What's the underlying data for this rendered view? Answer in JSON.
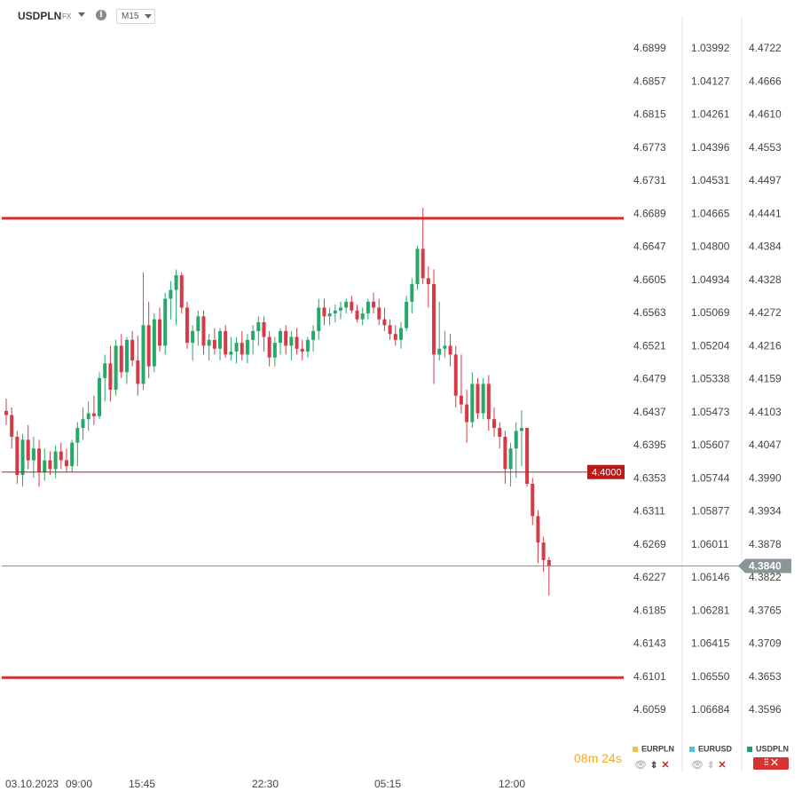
{
  "header": {
    "symbol": "USDPLN",
    "market": "FX",
    "info_glyph": "i",
    "timeframe": "M15"
  },
  "axes": {
    "col1": [
      "4.6899",
      "4.6857",
      "4.6815",
      "4.6773",
      "4.6731",
      "4.6689",
      "4.6647",
      "4.6605",
      "4.6563",
      "4.6521",
      "4.6479",
      "4.6437",
      "4.6395",
      "4.6353",
      "4.6311",
      "4.6269",
      "4.6227",
      "4.6185",
      "4.6143",
      "4.6101",
      "4.6059"
    ],
    "col2": [
      "1.03992",
      "1.04127",
      "1.04261",
      "1.04396",
      "1.04531",
      "1.04665",
      "1.04800",
      "1.04934",
      "1.05069",
      "1.05204",
      "1.05338",
      "1.05473",
      "1.05607",
      "1.05744",
      "1.05877",
      "1.06011",
      "1.06146",
      "1.06281",
      "1.06415",
      "1.06550",
      "1.06684"
    ],
    "col3": [
      "4.4722",
      "4.4666",
      "4.4610",
      "4.4553",
      "4.4497",
      "4.4441",
      "4.4384",
      "4.4328",
      "4.4272",
      "4.4216",
      "4.4159",
      "4.4103",
      "4.4047",
      "4.3990",
      "4.3934",
      "4.3878",
      "4.3822",
      "4.3765",
      "4.3709",
      "4.3653",
      "4.3596"
    ],
    "time_labels": [
      "03.10.2023",
      "09:00",
      "15:45",
      "22:30",
      "05:15",
      "12:00"
    ]
  },
  "price_lines": {
    "level_label": "4.4000",
    "current_label": "4.3840"
  },
  "countdown": {
    "min": "08",
    "min_unit": "m",
    "sec": "24",
    "sec_unit": "s"
  },
  "legend": [
    {
      "name": "EURPLN",
      "color": "#f5c242"
    },
    {
      "name": "EURUSD",
      "color": "#4ec3e0"
    },
    {
      "name": "USDPLN",
      "color": "#1fa06a"
    }
  ],
  "colors": {
    "up": "#26a86a",
    "down": "#d63a46",
    "hline": "#d32f2f",
    "current": "#8a9599"
  },
  "chart_data": {
    "type": "candlestick",
    "symbol": "USDPLN",
    "ylim": [
      4.3596,
      4.4722
    ],
    "current_price": 4.384,
    "horizontal_levels": [
      4.4432,
      4.4,
      4.365
    ],
    "x_ticks": [
      "03.10.2023",
      "09:00",
      "15:45",
      "22:30",
      "05:15",
      "12:00"
    ],
    "candles": [
      [
        4.4104,
        4.4125,
        4.408,
        4.4097
      ],
      [
        4.4097,
        4.411,
        4.404,
        4.406
      ],
      [
        4.406,
        4.407,
        4.398,
        4.3995
      ],
      [
        4.3995,
        4.4065,
        4.3975,
        4.4055
      ],
      [
        4.4055,
        4.408,
        4.4005,
        4.402
      ],
      [
        4.402,
        4.406,
        4.399,
        4.404
      ],
      [
        4.404,
        4.4055,
        4.3975,
        4.4
      ],
      [
        4.4,
        4.404,
        4.3985,
        4.402
      ],
      [
        4.402,
        4.4035,
        4.3995,
        4.4005
      ],
      [
        4.4005,
        4.4045,
        4.399,
        4.4035
      ],
      [
        4.4035,
        4.405,
        4.4005,
        4.402
      ],
      [
        4.402,
        4.404,
        4.4,
        4.401
      ],
      [
        4.401,
        4.4055,
        4.4,
        4.405
      ],
      [
        4.405,
        4.4085,
        4.401,
        4.4075
      ],
      [
        4.4075,
        4.411,
        4.4055,
        4.409
      ],
      [
        4.409,
        4.412,
        4.407,
        4.41
      ],
      [
        4.41,
        4.413,
        4.408,
        4.4095
      ],
      [
        4.4095,
        4.417,
        4.409,
        4.416
      ],
      [
        4.416,
        4.42,
        4.412,
        4.4185
      ],
      [
        4.4185,
        4.4215,
        4.412,
        4.414
      ],
      [
        4.414,
        4.4225,
        4.413,
        4.4215
      ],
      [
        4.4215,
        4.4235,
        4.416,
        4.417
      ],
      [
        4.417,
        4.423,
        4.415,
        4.4225
      ],
      [
        4.4225,
        4.424,
        4.418,
        4.419
      ],
      [
        4.419,
        4.4232,
        4.413,
        4.415
      ],
      [
        4.415,
        4.434,
        4.414,
        4.425
      ],
      [
        4.425,
        4.429,
        4.416,
        4.418
      ],
      [
        4.418,
        4.427,
        4.417,
        4.426
      ],
      [
        4.426,
        4.428,
        4.4205,
        4.4215
      ],
      [
        4.4215,
        4.4305,
        4.42,
        4.4295
      ],
      [
        4.4295,
        4.4325,
        4.426,
        4.431
      ],
      [
        4.431,
        4.4345,
        4.425,
        4.4335
      ],
      [
        4.4335,
        4.434,
        4.427,
        4.428
      ],
      [
        4.428,
        4.429,
        4.421,
        4.422
      ],
      [
        4.422,
        4.425,
        4.419,
        4.424
      ],
      [
        4.424,
        4.4275,
        4.4215,
        4.4265
      ],
      [
        4.4265,
        4.4275,
        4.42,
        4.4215
      ],
      [
        4.4215,
        4.4235,
        4.419,
        4.4225
      ],
      [
        4.4225,
        4.4245,
        4.42,
        4.421
      ],
      [
        4.421,
        4.4245,
        4.419,
        4.424
      ],
      [
        4.424,
        4.425,
        4.4195,
        4.42
      ],
      [
        4.42,
        4.423,
        4.419,
        4.4205
      ],
      [
        4.4205,
        4.423,
        4.4185,
        4.422
      ],
      [
        4.422,
        4.424,
        4.419,
        4.42
      ],
      [
        4.42,
        4.4235,
        4.4185,
        4.4225
      ],
      [
        4.4225,
        4.425,
        4.42,
        4.424
      ],
      [
        4.424,
        4.4265,
        4.4215,
        4.4255
      ],
      [
        4.4255,
        4.4265,
        4.4205,
        4.423
      ],
      [
        4.423,
        4.424,
        4.418,
        4.4195
      ],
      [
        4.4195,
        4.423,
        4.418,
        4.422
      ],
      [
        4.422,
        4.4245,
        4.42,
        4.424
      ],
      [
        4.424,
        4.425,
        4.42,
        4.4215
      ],
      [
        4.4215,
        4.424,
        4.419,
        4.423
      ],
      [
        4.423,
        4.4245,
        4.42,
        4.421
      ],
      [
        4.421,
        4.4225,
        4.419,
        4.4205
      ],
      [
        4.4205,
        4.423,
        4.4195,
        4.4225
      ],
      [
        4.4225,
        4.425,
        4.4205,
        4.424
      ],
      [
        4.424,
        4.4295,
        4.4225,
        4.428
      ],
      [
        4.428,
        4.4295,
        4.425,
        4.4265
      ],
      [
        4.4265,
        4.428,
        4.425,
        4.427
      ],
      [
        4.427,
        4.4285,
        4.4255,
        4.4275
      ],
      [
        4.4275,
        4.429,
        4.426,
        4.428
      ],
      [
        4.428,
        4.4295,
        4.427,
        4.429
      ],
      [
        4.429,
        4.43,
        4.427,
        4.4275
      ],
      [
        4.4275,
        4.4285,
        4.4255,
        4.426
      ],
      [
        4.426,
        4.428,
        4.425,
        4.427
      ],
      [
        4.427,
        4.4295,
        4.426,
        4.429
      ],
      [
        4.429,
        4.4305,
        4.427,
        4.428
      ],
      [
        4.428,
        4.4295,
        4.425,
        4.426
      ],
      [
        4.426,
        4.428,
        4.424,
        4.425
      ],
      [
        4.425,
        4.426,
        4.4225,
        4.4235
      ],
      [
        4.4235,
        4.425,
        4.4215,
        4.4225
      ],
      [
        4.4225,
        4.4255,
        4.421,
        4.4245
      ],
      [
        4.4245,
        4.43,
        4.424,
        4.429
      ],
      [
        4.429,
        4.433,
        4.427,
        4.432
      ],
      [
        4.432,
        4.4385,
        4.431,
        4.438
      ],
      [
        4.438,
        4.445,
        4.432,
        4.433
      ],
      [
        4.433,
        4.435,
        4.428,
        4.432
      ],
      [
        4.432,
        4.4345,
        4.415,
        4.42
      ],
      [
        4.42,
        4.429,
        4.419,
        4.421
      ],
      [
        4.421,
        4.424,
        4.4195,
        4.4215
      ],
      [
        4.4215,
        4.4235,
        4.418,
        4.42
      ],
      [
        4.42,
        4.4215,
        4.411,
        4.413
      ],
      [
        4.413,
        4.42,
        4.41,
        4.4115
      ],
      [
        4.4115,
        4.414,
        4.405,
        4.4085
      ],
      [
        4.4085,
        4.417,
        4.4075,
        4.415
      ],
      [
        4.415,
        4.416,
        4.409,
        4.41
      ],
      [
        4.41,
        4.416,
        4.409,
        4.415
      ],
      [
        4.415,
        4.4165,
        4.407,
        4.409
      ],
      [
        4.409,
        4.411,
        4.406,
        4.4075
      ],
      [
        4.4075,
        4.4085,
        4.404,
        4.406
      ],
      [
        4.406,
        4.407,
        4.398,
        4.4005
      ],
      [
        4.4005,
        4.405,
        4.3975,
        4.404
      ],
      [
        4.404,
        4.4085,
        4.399,
        4.407
      ],
      [
        4.407,
        4.4105,
        4.401,
        4.4075
      ],
      [
        4.4075,
        4.4075,
        4.3975,
        4.398
      ],
      [
        4.398,
        4.399,
        4.391,
        4.3925
      ],
      [
        4.3925,
        4.3935,
        4.3845,
        4.388
      ],
      [
        4.388,
        4.389,
        4.383,
        4.385
      ],
      [
        4.385,
        4.3855,
        4.379,
        4.384
      ]
    ]
  }
}
